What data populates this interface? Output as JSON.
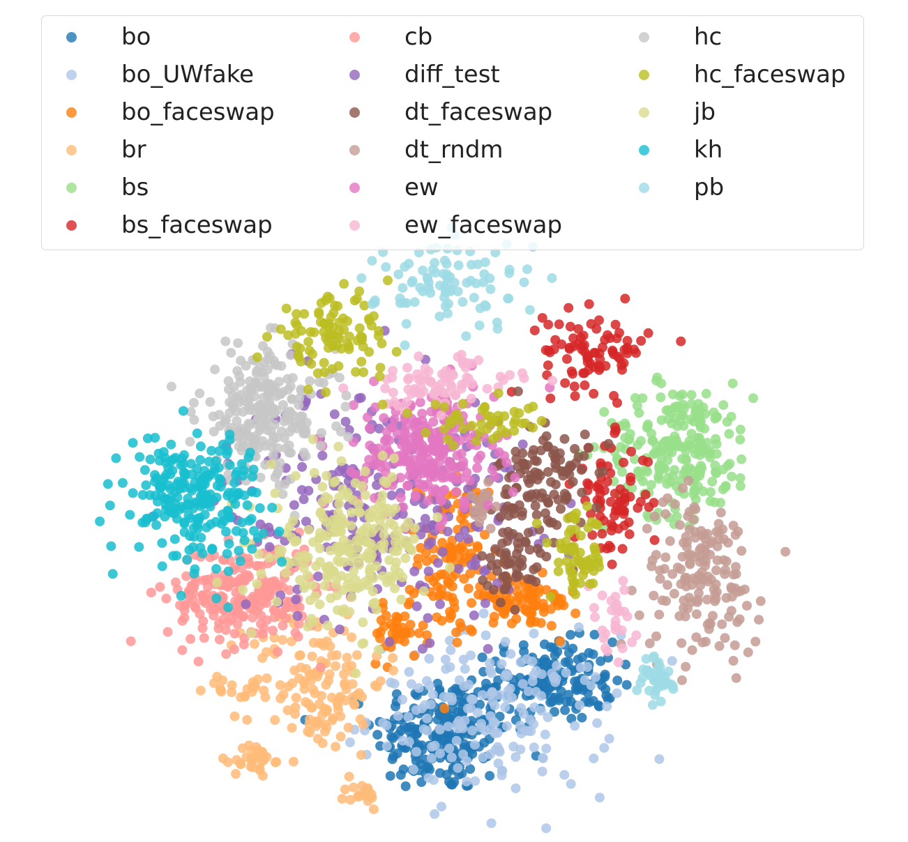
{
  "chart_data": {
    "type": "scatter",
    "title": "",
    "xlabel": "",
    "ylabel": "",
    "axes_visible": false,
    "grid": false,
    "legend": {
      "placement": "top-center",
      "columns": 3,
      "marker": "filled-circle"
    },
    "xlim": [
      0,
      100
    ],
    "ylim": [
      0,
      100
    ],
    "series": [
      {
        "name": "bo",
        "color": "#1f77b4",
        "clusters": [
          {
            "cx": 48.5,
            "cy": 16.0,
            "sx": 4.5,
            "sy": 4.5,
            "n": 210
          },
          {
            "cx": 63.0,
            "cy": 24.0,
            "sx": 4.2,
            "sy": 3.0,
            "n": 170
          }
        ]
      },
      {
        "name": "bo_UWfake",
        "color": "#aec7e8",
        "clusters": [
          {
            "cx": 55.0,
            "cy": 19.0,
            "sx": 8.0,
            "sy": 6.0,
            "n": 190
          }
        ]
      },
      {
        "name": "bo_faceswap",
        "color": "#ff7f0e",
        "clusters": [
          {
            "cx": 50.0,
            "cy": 43.0,
            "sx": 2.3,
            "sy": 6.0,
            "n": 110
          },
          {
            "cx": 59.0,
            "cy": 36.0,
            "sx": 3.8,
            "sy": 2.0,
            "n": 90
          },
          {
            "cx": 42.5,
            "cy": 31.0,
            "sx": 1.8,
            "sy": 2.0,
            "n": 40
          }
        ]
      },
      {
        "name": "br",
        "color": "#ffbb78",
        "clusters": [
          {
            "cx": 32.0,
            "cy": 24.0,
            "sx": 4.5,
            "sy": 5.5,
            "n": 140
          },
          {
            "cx": 23.5,
            "cy": 12.0,
            "sx": 1.3,
            "sy": 1.3,
            "n": 30
          },
          {
            "cx": 38.0,
            "cy": 6.5,
            "sx": 1.0,
            "sy": 1.0,
            "n": 18
          },
          {
            "cx": 21.0,
            "cy": 23.0,
            "sx": 2.0,
            "sy": 0.8,
            "n": 15
          }
        ]
      },
      {
        "name": "bs",
        "color": "#98df8a",
        "clusters": [
          {
            "cx": 80.0,
            "cy": 59.0,
            "sx": 5.0,
            "sy": 5.0,
            "n": 220
          }
        ]
      },
      {
        "name": "bs_faceswap",
        "color": "#d62728",
        "clusters": [
          {
            "cx": 69.0,
            "cy": 74.0,
            "sx": 3.5,
            "sy": 3.0,
            "n": 85
          },
          {
            "cx": 71.0,
            "cy": 51.0,
            "sx": 2.5,
            "sy": 4.5,
            "n": 75
          }
        ]
      },
      {
        "name": "cb",
        "color": "#ff9896",
        "clusters": [
          {
            "cx": 22.0,
            "cy": 37.0,
            "sx": 5.0,
            "sy": 3.8,
            "n": 230
          }
        ]
      },
      {
        "name": "diff_test",
        "color": "#9467bd",
        "clusters": [
          {
            "cx": 40.0,
            "cy": 51.0,
            "sx": 10.0,
            "sy": 9.0,
            "n": 240
          }
        ]
      },
      {
        "name": "dt_faceswap",
        "color": "#8c564b",
        "clusters": [
          {
            "cx": 62.0,
            "cy": 54.0,
            "sx": 3.0,
            "sy": 5.0,
            "n": 120
          },
          {
            "cx": 58.0,
            "cy": 42.0,
            "sx": 2.2,
            "sy": 2.5,
            "n": 50
          }
        ]
      },
      {
        "name": "dt_rndm",
        "color": "#c49c94",
        "clusters": [
          {
            "cx": 83.0,
            "cy": 40.0,
            "sx": 4.0,
            "sy": 6.0,
            "n": 160
          },
          {
            "cx": 54.0,
            "cy": 51.0,
            "sx": 1.0,
            "sy": 2.0,
            "n": 20
          }
        ]
      },
      {
        "name": "ew",
        "color": "#e377c2",
        "clusters": [
          {
            "cx": 46.5,
            "cy": 58.5,
            "sx": 4.5,
            "sy": 4.5,
            "n": 260
          }
        ]
      },
      {
        "name": "ew_faceswap",
        "color": "#f7b6d2",
        "clusters": [
          {
            "cx": 48.0,
            "cy": 69.0,
            "sx": 5.0,
            "sy": 2.0,
            "n": 80
          },
          {
            "cx": 71.0,
            "cy": 33.0,
            "sx": 1.5,
            "sy": 3.0,
            "n": 30
          }
        ]
      },
      {
        "name": "hc",
        "color": "#c7c7c7",
        "clusters": [
          {
            "cx": 25.0,
            "cy": 64.5,
            "sx": 4.5,
            "sy": 5.0,
            "n": 230
          }
        ]
      },
      {
        "name": "hc_faceswap",
        "color": "#bcbd22",
        "clusters": [
          {
            "cx": 34.0,
            "cy": 76.0,
            "sx": 4.0,
            "sy": 3.0,
            "n": 95
          },
          {
            "cx": 66.5,
            "cy": 42.5,
            "sx": 1.8,
            "sy": 3.2,
            "n": 60
          },
          {
            "cx": 54.5,
            "cy": 63.0,
            "sx": 4.0,
            "sy": 1.5,
            "n": 45
          }
        ]
      },
      {
        "name": "jb",
        "color": "#dbdb8d",
        "clusters": [
          {
            "cx": 36.0,
            "cy": 44.0,
            "sx": 5.2,
            "sy": 5.5,
            "n": 240
          }
        ]
      },
      {
        "name": "kh",
        "color": "#17becf",
        "clusters": [
          {
            "cx": 15.5,
            "cy": 52.0,
            "sx": 4.5,
            "sy": 4.8,
            "n": 230
          }
        ]
      },
      {
        "name": "pb",
        "color": "#9edae5",
        "clusters": [
          {
            "cx": 50.0,
            "cy": 84.0,
            "sx": 5.0,
            "sy": 3.5,
            "n": 90
          },
          {
            "cx": 77.0,
            "cy": 24.0,
            "sx": 1.3,
            "sy": 2.0,
            "n": 40
          }
        ]
      }
    ]
  }
}
